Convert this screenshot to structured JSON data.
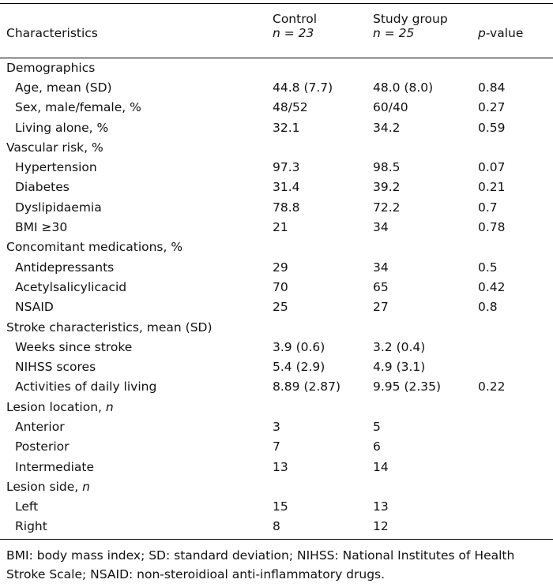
{
  "header": {
    "characteristics": "Characteristics",
    "control_label": "Control",
    "control_n": "n = 23",
    "study_label": "Study group",
    "study_n": "n = 25",
    "pvalue_p": "p",
    "pvalue_rest": "-value"
  },
  "sections": [
    {
      "title": "Demographics",
      "rows": [
        {
          "label": "Age, mean (SD)",
          "control": "44.8 (7.7)",
          "study": "48.0 (8.0)",
          "p": "0.84"
        },
        {
          "label": "Sex, male/female, %",
          "control": "48/52",
          "study": "60/40",
          "p": "0.27"
        },
        {
          "label": "Living alone, %",
          "control": "32.1",
          "study": "34.2",
          "p": "0.59"
        }
      ]
    },
    {
      "title": "Vascular risk, %",
      "rows": [
        {
          "label": "Hypertension",
          "control": "97.3",
          "study": "98.5",
          "p": "0.07"
        },
        {
          "label": "Diabetes",
          "control": "31.4",
          "study": "39.2",
          "p": "0.21"
        },
        {
          "label": "Dyslipidaemia",
          "control": "78.8",
          "study": "72.2",
          "p": "0.7"
        },
        {
          "label": "BMI ≥30",
          "control": "21",
          "study": "34",
          "p": "0.78"
        }
      ]
    },
    {
      "title": "Concomitant medications, %",
      "rows": [
        {
          "label": "Antidepressants",
          "control": "29",
          "study": "34",
          "p": "0.5"
        },
        {
          "label": "Acetylsalicylicacid",
          "control": "70",
          "study": "65",
          "p": "0.42"
        },
        {
          "label": "NSAID",
          "control": "25",
          "study": "27",
          "p": "0.8"
        }
      ]
    },
    {
      "title": "Stroke characteristics, mean (SD)",
      "rows": [
        {
          "label": "Weeks since stroke",
          "control": "3.9 (0.6)",
          "study": "3.2 (0.4)",
          "p": ""
        },
        {
          "label": "NIHSS scores",
          "control": "5.4 (2.9)",
          "study": "4.9 (3.1)",
          "p": ""
        },
        {
          "label": "Activities of daily living",
          "control": "8.89 (2.87)",
          "study": "9.95 (2.35)",
          "p": "0.22"
        }
      ]
    },
    {
      "title": "Lesion location, ",
      "title_italic": "n",
      "rows": [
        {
          "label": "Anterior",
          "control": "3",
          "study": "5",
          "p": ""
        },
        {
          "label": "Posterior",
          "control": "7",
          "study": "6",
          "p": ""
        },
        {
          "label": "Intermediate",
          "control": "13",
          "study": "14",
          "p": ""
        }
      ]
    },
    {
      "title": "Lesion side, ",
      "title_italic": "n",
      "rows": [
        {
          "label": "Left",
          "control": "15",
          "study": "13",
          "p": ""
        },
        {
          "label": "Right",
          "control": "8",
          "study": "12",
          "p": ""
        }
      ]
    }
  ],
  "footnote": "BMI: body mass index; SD: standard deviation; NIHSS: National Institutes of Health Stroke Scale; NSAID: non-steroidioal anti-inflammatory drugs."
}
